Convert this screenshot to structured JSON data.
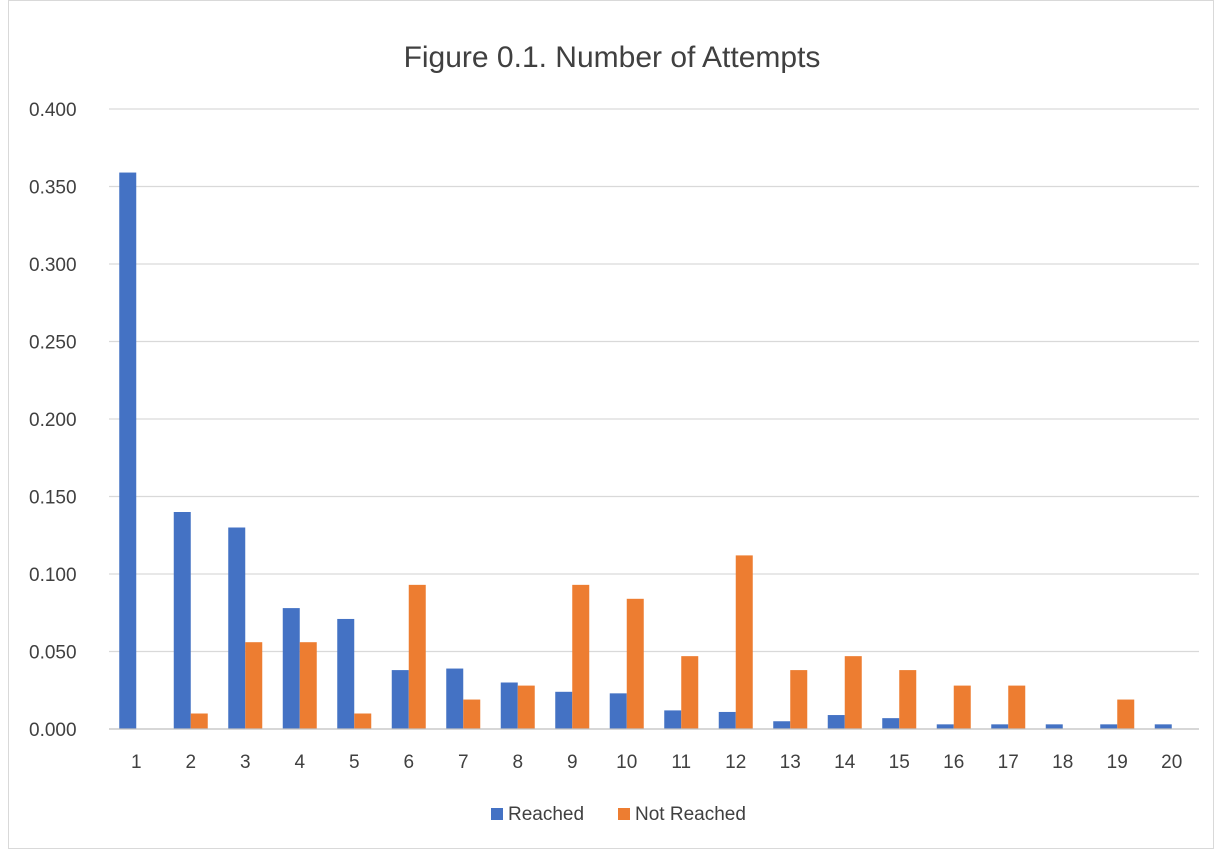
{
  "chart_data": {
    "type": "bar",
    "title": "Figure 0.1. Number of Attempts",
    "xlabel": "",
    "ylabel": "",
    "categories": [
      "1",
      "2",
      "3",
      "4",
      "5",
      "6",
      "7",
      "8",
      "9",
      "10",
      "11",
      "12",
      "13",
      "14",
      "15",
      "16",
      "17",
      "18",
      "19",
      "20"
    ],
    "series": [
      {
        "name": "Reached",
        "color": "#4472C4",
        "values": [
          0.359,
          0.14,
          0.13,
          0.078,
          0.071,
          0.038,
          0.039,
          0.03,
          0.024,
          0.023,
          0.012,
          0.011,
          0.005,
          0.009,
          0.007,
          0.003,
          0.003,
          0.003,
          0.003,
          0.003
        ]
      },
      {
        "name": "Not Reached",
        "color": "#ED7D31",
        "values": [
          0.0,
          0.01,
          0.056,
          0.056,
          0.01,
          0.093,
          0.019,
          0.028,
          0.093,
          0.084,
          0.047,
          0.112,
          0.038,
          0.047,
          0.038,
          0.028,
          0.028,
          0.0,
          0.019,
          0.0
        ]
      }
    ],
    "ylim": [
      0,
      0.4
    ],
    "yticks": [
      "0.000",
      "0.050",
      "0.100",
      "0.150",
      "0.200",
      "0.250",
      "0.300",
      "0.350",
      "0.400"
    ],
    "grid": true,
    "legend": "bottom"
  }
}
